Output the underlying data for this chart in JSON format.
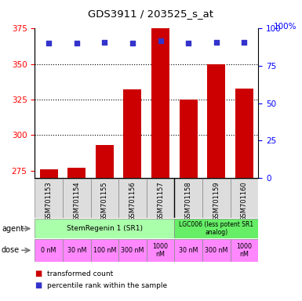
{
  "title": "GDS3911 / 203525_s_at",
  "samples": [
    "GSM701153",
    "GSM701154",
    "GSM701155",
    "GSM701156",
    "GSM701157",
    "GSM701158",
    "GSM701159",
    "GSM701160"
  ],
  "bar_values": [
    276,
    277,
    293,
    332,
    375,
    325,
    350,
    333
  ],
  "percentile_values": [
    90,
    90,
    91,
    90,
    92,
    90,
    91,
    91
  ],
  "ymin": 270,
  "ymax": 375,
  "yticks": [
    275,
    300,
    325,
    350,
    375
  ],
  "y2ticks": [
    0,
    25,
    50,
    75,
    100
  ],
  "bar_color": "#cc0000",
  "dot_color": "#3333cc",
  "agent1_color": "#aaffaa",
  "agent2_color": "#66ee66",
  "dose_color": "#ff88ff",
  "agent_labels": [
    "StemRegenin 1 (SR1)",
    "LGC006 (less potent SR1\nanalog)"
  ],
  "dose_labels": [
    "0 nM",
    "30 nM",
    "100 nM",
    "300 nM",
    "1000\nnM",
    "30 nM",
    "300 nM",
    "1000\nnM"
  ],
  "sample_bg_color": "#dddddd",
  "grid_dotted_at": [
    300,
    325,
    350
  ],
  "legend_bar_label": "transformed count",
  "legend_dot_label": "percentile rank within the sample"
}
